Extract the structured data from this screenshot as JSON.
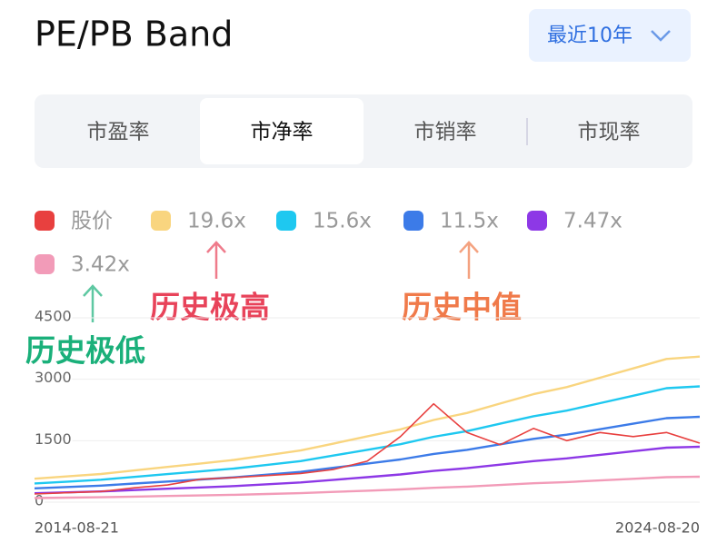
{
  "header": {
    "title": "PE/PB Band",
    "range": "最近10年"
  },
  "tabs": [
    "市盈率",
    "市净率",
    "市销率",
    "市现率"
  ],
  "active_tab": 1,
  "chart_data": {
    "type": "line",
    "annotations": [
      {
        "text": "历史极高",
        "color": "#e8435a",
        "target": 1
      },
      {
        "text": "历史中值",
        "color": "#f07a4a",
        "target": 3
      },
      {
        "text": "历史极低",
        "color": "#1ab07a",
        "target": 5
      }
    ],
    "x": [
      "2014-08-21",
      null,
      null,
      null,
      null,
      null,
      null,
      null,
      null,
      null,
      null,
      null,
      null,
      null,
      null,
      null,
      null,
      null,
      null,
      null,
      "2024-08-20"
    ],
    "ylim": [
      0,
      4500
    ],
    "yticks": [
      0,
      1500,
      3000,
      4500
    ],
    "grid": true,
    "series": [
      {
        "name": "股价",
        "color": "#e8403f",
        "values": [
          200,
          230,
          260,
          350,
          420,
          560,
          600,
          650,
          700,
          800,
          1000,
          1600,
          2400,
          1700,
          1400,
          1800,
          1500,
          1700,
          1600,
          1700,
          1440
        ]
      },
      {
        "name": "19.6x",
        "color": "#f9d57f",
        "values": [
          573,
          630,
          688,
          774,
          860,
          945,
          1031,
          1146,
          1261,
          1433,
          1604,
          1776,
          2006,
          2177,
          2407,
          2636,
          2808,
          3037,
          3266,
          3495,
          3553
        ]
      },
      {
        "name": "15.6x",
        "color": "#1ec8f0",
        "values": [
          456,
          502,
          547,
          616,
          684,
          752,
          821,
          912,
          1003,
          1140,
          1277,
          1414,
          1596,
          1733,
          1915,
          2098,
          2234,
          2417,
          2599,
          2782,
          2827
        ]
      },
      {
        "name": "11.5x",
        "color": "#3c7be8",
        "values": [
          336,
          370,
          403,
          454,
          504,
          554,
          605,
          672,
          739,
          840,
          941,
          1042,
          1176,
          1277,
          1411,
          1546,
          1646,
          1781,
          1915,
          2050,
          2083
        ]
      },
      {
        "name": "7.47x",
        "color": "#8d38e6",
        "values": [
          218,
          240,
          262,
          294,
          327,
          360,
          392,
          436,
          480,
          545,
          610,
          676,
          763,
          828,
          916,
          1003,
          1068,
          1155,
          1243,
          1330,
          1352
        ]
      },
      {
        "name": "3.42x",
        "color": "#f29bb8",
        "values": [
          100,
          110,
          120,
          135,
          150,
          165,
          180,
          200,
          220,
          250,
          280,
          310,
          350,
          380,
          420,
          460,
          490,
          530,
          570,
          610,
          620
        ]
      }
    ]
  }
}
